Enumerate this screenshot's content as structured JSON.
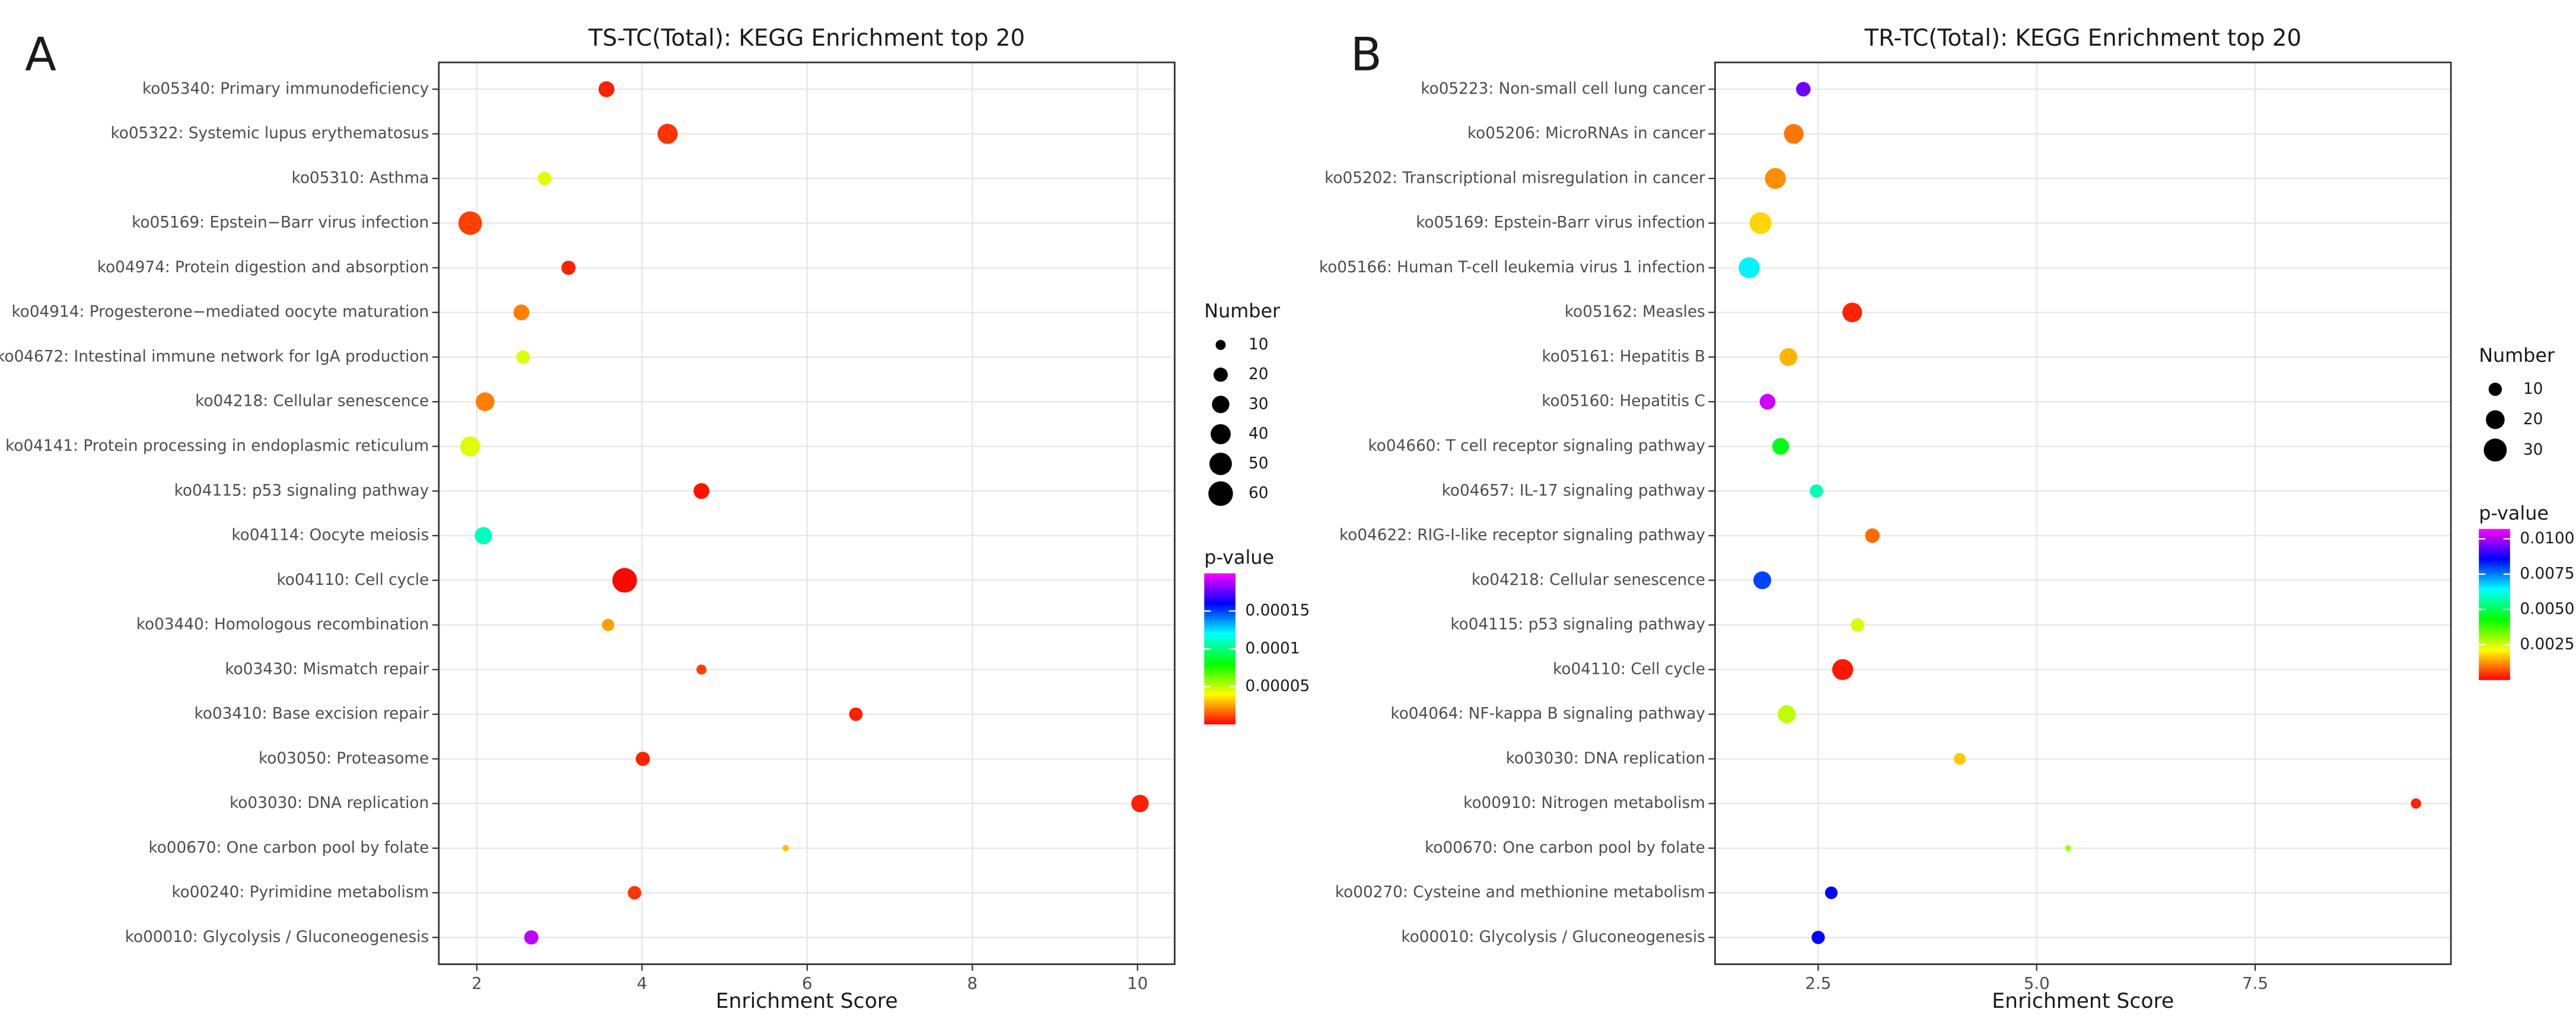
{
  "chart_data": [
    {
      "type": "bubble",
      "panel": "A",
      "title": "TS-TC(Total): KEGG Enrichment top 20",
      "xlabel": "Enrichment Score",
      "categories": [
        "ko05340: Primary immunodeficiency",
        "ko05322: Systemic lupus erythematosus",
        "ko05310: Asthma",
        "ko05169: Epstein−Barr virus infection",
        "ko04974: Protein digestion and absorption",
        "ko04914: Progesterone−mediated oocyte maturation",
        "ko04672: Intestinal immune network for IgA production",
        "ko04218: Cellular senescence",
        "ko04141: Protein processing in endoplasmic reticulum",
        "ko04115: p53 signaling pathway",
        "ko04114: Oocyte meiosis",
        "ko04110: Cell cycle",
        "ko03440: Homologous recombination",
        "ko03430: Mismatch repair",
        "ko03410: Base excision repair",
        "ko03050: Proteasome",
        "ko03030: DNA replication",
        "ko00670: One carbon pool by folate",
        "ko00240: Pyrimidine metabolism",
        "ko00010: Glycolysis / Gluconeogenesis"
      ],
      "x": [
        3.57,
        4.31,
        2.82,
        1.92,
        3.11,
        2.54,
        2.56,
        2.1,
        1.92,
        4.72,
        2.08,
        3.79,
        3.59,
        4.72,
        6.59,
        4.01,
        10.03,
        5.74,
        3.91,
        2.66
      ],
      "sizes": [
        25,
        40,
        18,
        55,
        20,
        25,
        18,
        35,
        40,
        25,
        30,
        60,
        15,
        10,
        18,
        20,
        30,
        4,
        18,
        20
      ],
      "pvalues": [
        5e-06,
        8e-06,
        4.5e-05,
        1e-05,
        5e-06,
        2e-05,
        4.5e-05,
        2e-05,
        4.5e-05,
        3e-06,
        0.00011,
        1e-06,
        2.5e-05,
        1e-05,
        5e-06,
        5e-06,
        5e-06,
        3e-05,
        8e-06,
        0.00019
      ],
      "xlim": [
        1.54,
        10.45
      ],
      "xticks": [
        2,
        4,
        6,
        8,
        10
      ],
      "size_title": "Number",
      "size_legend": [
        10,
        20,
        30,
        40,
        50,
        60
      ],
      "color_title": "p-value",
      "clim": [
        0,
        0.0002
      ],
      "cticks": [
        5e-05,
        0.0001,
        0.00015
      ],
      "colorscale": [
        "#ff0000",
        "#ffff00",
        "#00ff00",
        "#00ffff",
        "#0000ff",
        "#ff00ff"
      ],
      "grid": true
    },
    {
      "type": "bubble",
      "panel": "B",
      "title": "TR-TC(Total): KEGG Enrichment top 20",
      "xlabel": "Enrichment Score",
      "categories": [
        "ko05223: Non-small cell lung cancer",
        "ko05206: MicroRNAs in cancer",
        "ko05202: Transcriptional misregulation in cancer",
        "ko05169: Epstein-Barr virus infection",
        "ko05166: Human T-cell leukemia virus 1 infection",
        "ko05162: Measles",
        "ko05161: Hepatitis B",
        "ko05160: Hepatitis C",
        "ko04660: T cell receptor signaling pathway",
        "ko04657: IL-17 signaling pathway",
        "ko04622: RIG-I-like receptor signaling pathway",
        "ko04218: Cellular senescence",
        "ko04115: p53 signaling pathway",
        "ko04110: Cell cycle",
        "ko04064: NF-kappa B signaling pathway",
        "ko03030: DNA replication",
        "ko00910: Nitrogen metabolism",
        "ko00670: One carbon pool by folate",
        "ko00270: Cysteine and methionine metabolism",
        "ko00010: Glycolysis / Gluconeogenesis"
      ],
      "x": [
        2.33,
        2.22,
        2.01,
        1.84,
        1.71,
        2.89,
        2.16,
        1.92,
        2.07,
        2.48,
        3.12,
        1.86,
        2.95,
        2.78,
        2.14,
        4.12,
        9.34,
        5.36,
        2.65,
        2.5
      ],
      "sizes": [
        12,
        22,
        25,
        27,
        25,
        22,
        18,
        14,
        16,
        10,
        12,
        18,
        10,
        25,
        18,
        8,
        6,
        2,
        9,
        10
      ],
      "pvalues": [
        0.0095,
        0.001,
        0.0012,
        0.0018,
        0.0065,
        0.0003,
        0.0015,
        0.0103,
        0.0045,
        0.0058,
        0.0009,
        0.008,
        0.0025,
        0.0002,
        0.0027,
        0.0017,
        0.0003,
        0.003,
        0.0085,
        0.0085
      ],
      "xlim": [
        1.32,
        9.74
      ],
      "xticks": [
        2.5,
        {
          "value": 5,
          "label": "5.0"
        },
        7.5
      ],
      "size_title": "Number",
      "size_legend": [
        10,
        20,
        30
      ],
      "color_title": "p-value",
      "clim": [
        0,
        0.0107
      ],
      "cticks": [
        {
          "value": 0.0025,
          "label": "0.0025"
        },
        {
          "value": 0.005,
          "label": "0.0050"
        },
        {
          "value": 0.0075,
          "label": "0.0075"
        },
        {
          "value": 0.01,
          "label": "0.0100"
        }
      ],
      "colorscale": [
        "#ff0000",
        "#ffff00",
        "#00ff00",
        "#00ffff",
        "#0000ff",
        "#ff00ff"
      ],
      "grid": true
    }
  ]
}
